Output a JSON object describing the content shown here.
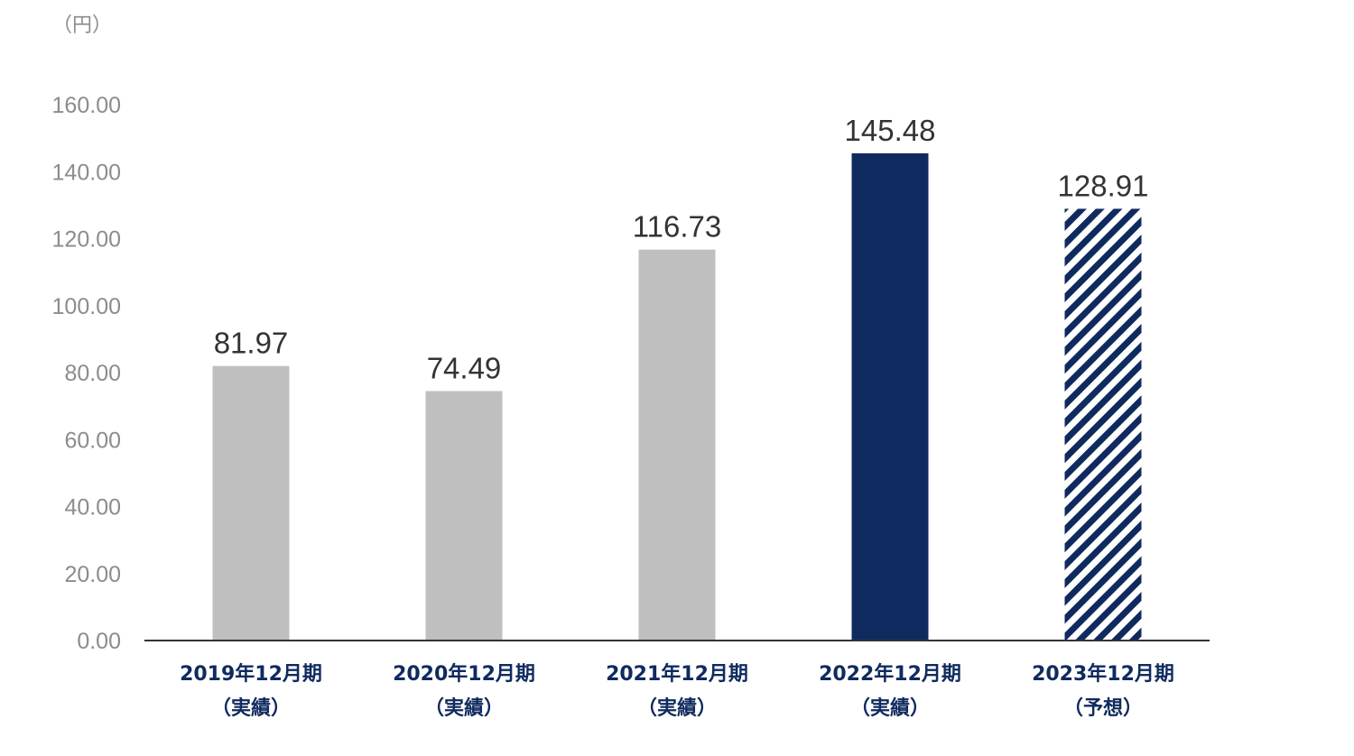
{
  "chart_data": {
    "type": "bar",
    "unit_label": "（円）",
    "categories": [
      {
        "line1": "2019年12月期",
        "line2": "（実績）"
      },
      {
        "line1": "2020年12月期",
        "line2": "（実績）"
      },
      {
        "line1": "2021年12月期",
        "line2": "（実績）"
      },
      {
        "line1": "2022年12月期",
        "line2": "（実績）"
      },
      {
        "line1": "2023年12月期",
        "line2": "（予想）"
      }
    ],
    "values": [
      81.97,
      74.49,
      116.73,
      145.48,
      128.91
    ],
    "value_labels": [
      "81.97",
      "74.49",
      "116.73",
      "145.48",
      "128.91"
    ],
    "bar_styles": [
      "solid-gray",
      "solid-gray",
      "solid-gray",
      "solid-navy",
      "hatched-navy"
    ],
    "ylim": [
      0,
      160
    ],
    "yticks": [
      "0.00",
      "20.00",
      "40.00",
      "60.00",
      "80.00",
      "100.00",
      "120.00",
      "140.00",
      "160.00"
    ],
    "grid": false,
    "colors": {
      "gray": "#bfbfbf",
      "navy": "#0f2a5e",
      "axis": "#333333"
    }
  }
}
